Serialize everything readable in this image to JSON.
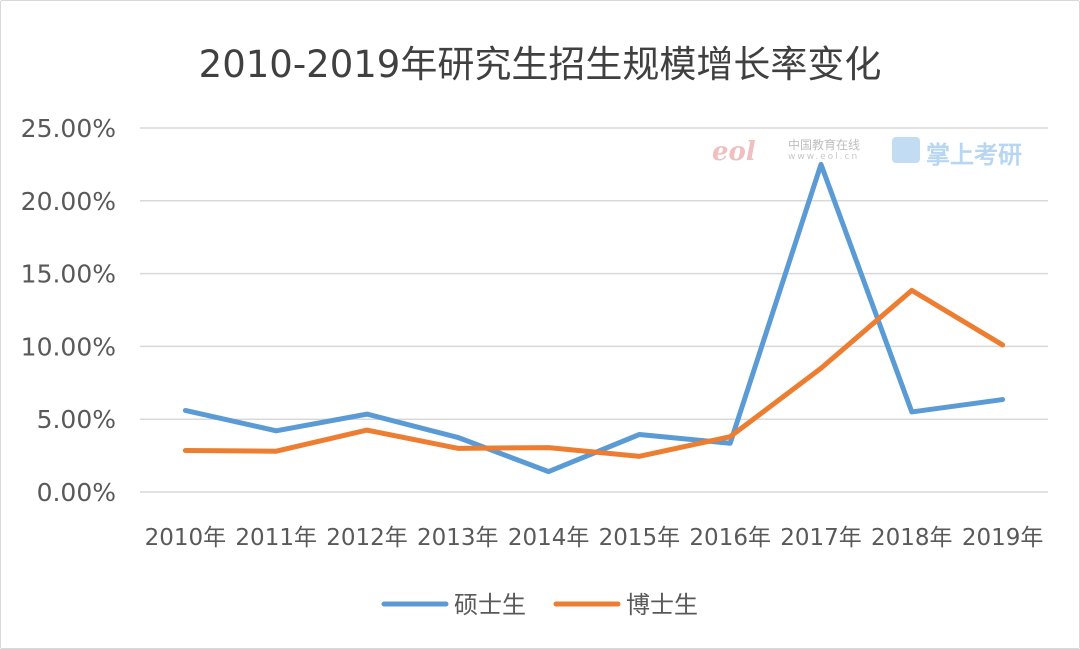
{
  "chart_data": {
    "type": "line",
    "title": "2010-2019年研究生招生规模增长率变化",
    "categories": [
      "2010年",
      "2011年",
      "2012年",
      "2013年",
      "2014年",
      "2015年",
      "2016年",
      "2017年",
      "2018年",
      "2019年"
    ],
    "series": [
      {
        "name": "硕士生",
        "color": "#5b9bd5",
        "values": [
          5.6,
          4.2,
          5.35,
          3.75,
          1.4,
          3.95,
          3.35,
          22.5,
          5.5,
          6.35
        ]
      },
      {
        "name": "博士生",
        "color": "#ed7d31",
        "values": [
          2.85,
          2.8,
          4.25,
          3.0,
          3.05,
          2.45,
          3.8,
          8.5,
          13.85,
          10.1
        ]
      }
    ],
    "yticks": [
      "0.00%",
      "5.00%",
      "10.00%",
      "15.00%",
      "20.00%",
      "25.00%"
    ],
    "ylim": [
      0,
      25
    ],
    "grid": true,
    "legend_position": "bottom"
  },
  "watermark": {
    "logo_text": "eol",
    "site_name": "中国教育在线",
    "site_url": "www.eol.cn",
    "brand": "掌上考研"
  }
}
